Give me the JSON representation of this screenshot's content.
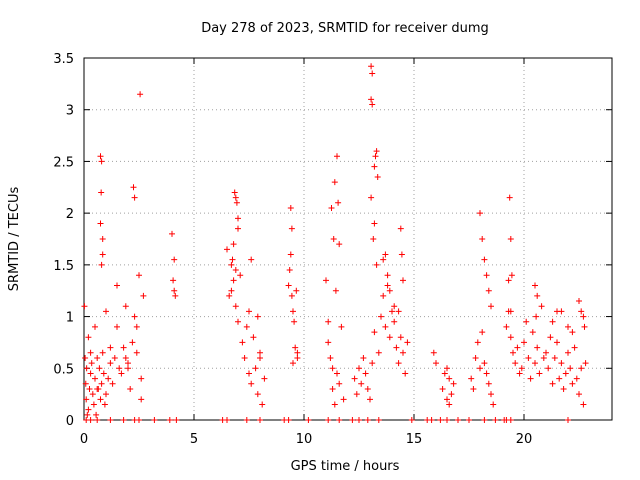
{
  "chart_data": {
    "type": "scatter",
    "title": "Day 278 of 2023, SRMTID for receiver dumg",
    "xlabel": "GPS time / hours",
    "ylabel": "SRMTID / TECUs",
    "xlim": [
      0,
      24
    ],
    "ylim": [
      0,
      3.5
    ],
    "x_ticks": [
      0,
      5,
      10,
      15,
      20
    ],
    "y_ticks": [
      0,
      0.5,
      1,
      1.5,
      2,
      2.5,
      3,
      3.5
    ],
    "x_tick_labels": [
      "0",
      "5",
      "10",
      "15",
      "20"
    ],
    "y_tick_labels": [
      "0",
      "0.5",
      "1",
      "1.5",
      "2",
      "2.5",
      "3",
      "3.5"
    ],
    "grid": true,
    "marker": "+",
    "series": [
      {
        "name": "SRMTID",
        "color": "#ff0000",
        "x": [
          0.02,
          0.05,
          0.08,
          0.1,
          0.12,
          0.15,
          0.2,
          0.25,
          0.3,
          0.35,
          0.4,
          0.45,
          0.5,
          0.55,
          0.6,
          0.65,
          0.7,
          0.75,
          0.8,
          0.85,
          0.9,
          0.95,
          1.0,
          1.1,
          1.2,
          1.3,
          1.4,
          1.5,
          1.6,
          1.7,
          1.8,
          1.9,
          2.0,
          2.1,
          2.2,
          2.3,
          2.4,
          2.5,
          2.6,
          2.7,
          0.75,
          0.8,
          0.75,
          0.85,
          0.8,
          0.85,
          0.78,
          2.25,
          2.3,
          2.55,
          0.2,
          0.3,
          0.5,
          0.6,
          1.0,
          1.2,
          1.5,
          1.9,
          2.0,
          2.4,
          2.6,
          4.0,
          4.1,
          4.05,
          4.1,
          4.15,
          6.5,
          6.6,
          6.7,
          6.8,
          6.9,
          7.0,
          7.1,
          7.2,
          7.3,
          7.4,
          7.5,
          7.6,
          7.7,
          7.8,
          7.9,
          8.0,
          8.1,
          8.2,
          6.85,
          6.9,
          6.95,
          7.0,
          7.0,
          6.75,
          6.8,
          6.7,
          6.9,
          7.5,
          7.6,
          7.9,
          8.0,
          9.3,
          9.4,
          9.45,
          9.5,
          9.55,
          9.6,
          9.65,
          9.7,
          9.4,
          9.45,
          9.35,
          9.5,
          9.7,
          11.0,
          11.1,
          11.2,
          11.3,
          11.4,
          11.5,
          11.6,
          11.7,
          11.8,
          11.25,
          11.35,
          11.4,
          11.5,
          11.55,
          11.6,
          11.45,
          11.1,
          11.3,
          12.3,
          12.4,
          12.5,
          12.6,
          12.7,
          12.8,
          12.9,
          13.0,
          13.1,
          13.2,
          13.3,
          13.4,
          13.5,
          13.6,
          13.7,
          13.8,
          13.9,
          14.0,
          14.1,
          14.2,
          14.3,
          14.4,
          14.5,
          14.6,
          14.7,
          13.05,
          13.1,
          13.05,
          13.1,
          13.2,
          13.25,
          13.3,
          13.35,
          13.2,
          13.15,
          13.05,
          13.6,
          13.7,
          14.4,
          14.45,
          14.5,
          13.8,
          13.9,
          14.1,
          14.3,
          15.9,
          16.0,
          16.3,
          16.4,
          16.5,
          16.6,
          16.7,
          16.8,
          16.5,
          16.6,
          17.6,
          17.7,
          17.8,
          17.9,
          18.0,
          18.1,
          18.2,
          18.3,
          18.4,
          18.5,
          18.6,
          18.0,
          18.1,
          18.2,
          18.3,
          18.4,
          18.5,
          19.2,
          19.3,
          19.4,
          19.5,
          19.6,
          19.7,
          19.8,
          19.9,
          20.0,
          20.1,
          20.2,
          20.3,
          20.4,
          20.5,
          20.6,
          20.7,
          20.8,
          20.9,
          21.0,
          21.1,
          21.2,
          21.3,
          21.4,
          21.5,
          21.6,
          21.7,
          21.8,
          21.9,
          22.0,
          22.1,
          22.2,
          22.3,
          22.4,
          22.5,
          22.6,
          22.7,
          22.8,
          19.35,
          19.4,
          19.45,
          19.3,
          19.4,
          20.5,
          20.6,
          20.55,
          21.3,
          21.5,
          21.7,
          22.0,
          22.2,
          22.5,
          22.6,
          22.7,
          22.75,
          0.1,
          0.3,
          0.6,
          1.2,
          1.8,
          2.3,
          2.5,
          3.2,
          3.9,
          4.2,
          6.3,
          6.5,
          7.4,
          8.0,
          9.1,
          9.3,
          10.2,
          11.1,
          11.6,
          12.2,
          12.5,
          12.9,
          13.4,
          14.9,
          15.6,
          15.8,
          16.2,
          16.5,
          17.0,
          17.5,
          18.2,
          18.7,
          19.1,
          19.4,
          19.2,
          22.0
        ],
        "y": [
          1.1,
          0.6,
          0.35,
          0.2,
          0.5,
          0.05,
          0.1,
          0.3,
          0.45,
          0.55,
          0.25,
          0.15,
          0.4,
          0.05,
          0.6,
          0.3,
          0.5,
          0.2,
          0.35,
          0.65,
          0.45,
          0.15,
          0.25,
          0.4,
          0.55,
          0.35,
          0.6,
          0.9,
          0.5,
          0.45,
          0.7,
          0.6,
          0.55,
          0.3,
          0.75,
          1.0,
          0.65,
          1.4,
          0.4,
          1.2,
          2.55,
          2.5,
          1.9,
          1.75,
          1.5,
          1.6,
          2.2,
          2.25,
          2.15,
          3.15,
          0.8,
          0.65,
          0.9,
          0.3,
          1.05,
          0.7,
          1.3,
          1.1,
          0.5,
          0.9,
          0.2,
          1.8,
          1.55,
          1.35,
          1.25,
          1.2,
          1.65,
          1.2,
          1.5,
          1.7,
          1.1,
          0.95,
          1.4,
          0.75,
          0.6,
          0.9,
          0.45,
          0.35,
          0.8,
          0.5,
          0.25,
          0.65,
          0.15,
          0.4,
          2.2,
          2.15,
          2.1,
          1.95,
          1.85,
          1.55,
          1.35,
          1.25,
          1.45,
          1.05,
          1.55,
          1.0,
          0.6,
          1.3,
          1.6,
          1.2,
          1.05,
          0.95,
          0.7,
          1.25,
          0.65,
          2.05,
          1.85,
          1.45,
          0.55,
          0.6,
          1.35,
          0.95,
          0.6,
          0.3,
          0.15,
          0.45,
          0.35,
          0.9,
          0.2,
          2.05,
          1.75,
          2.3,
          2.55,
          2.1,
          1.7,
          1.25,
          0.75,
          0.5,
          0.4,
          0.25,
          0.5,
          0.35,
          0.6,
          0.45,
          0.3,
          0.2,
          0.55,
          0.85,
          1.5,
          0.65,
          1.0,
          1.2,
          0.9,
          1.4,
          0.8,
          1.05,
          0.95,
          0.7,
          0.55,
          0.8,
          0.65,
          0.45,
          0.75,
          3.42,
          3.35,
          3.1,
          3.05,
          2.45,
          2.55,
          2.6,
          2.35,
          1.9,
          1.75,
          2.15,
          1.55,
          1.6,
          1.85,
          1.6,
          1.35,
          1.3,
          1.25,
          1.1,
          1.05,
          0.65,
          0.55,
          0.3,
          0.45,
          0.5,
          0.4,
          0.25,
          0.35,
          0.2,
          0.15,
          0.4,
          0.3,
          0.6,
          0.75,
          0.5,
          0.85,
          0.55,
          0.45,
          0.35,
          0.25,
          0.15,
          2.0,
          1.75,
          1.55,
          1.4,
          1.25,
          1.1,
          0.9,
          1.05,
          0.8,
          0.65,
          0.55,
          0.7,
          0.45,
          0.5,
          0.75,
          0.95,
          0.6,
          0.4,
          0.85,
          0.55,
          0.7,
          0.45,
          1.1,
          0.6,
          0.65,
          0.5,
          0.8,
          0.35,
          0.6,
          0.75,
          0.4,
          0.55,
          0.3,
          0.45,
          0.65,
          0.5,
          0.35,
          0.7,
          0.4,
          0.25,
          0.5,
          0.15,
          0.55,
          2.15,
          1.75,
          1.4,
          1.35,
          1.05,
          1.3,
          1.2,
          1.0,
          0.95,
          1.05,
          1.05,
          0.9,
          0.85,
          1.15,
          1.05,
          1.0,
          0.9,
          0.0,
          0.0,
          0.0,
          0.0,
          0.0,
          0.0,
          0.0,
          0.0,
          0.0,
          0.0,
          0.0,
          0.0,
          0.0,
          0.0,
          0.0,
          0.0,
          0.0,
          0.0,
          0.0,
          0.0,
          0.0,
          0.0,
          0.0,
          0.0,
          0.0,
          0.0,
          0.0,
          0.0,
          0.0,
          0.0,
          0.0,
          0.0,
          0.0,
          0.0,
          0.0,
          0.0
        ]
      }
    ]
  }
}
